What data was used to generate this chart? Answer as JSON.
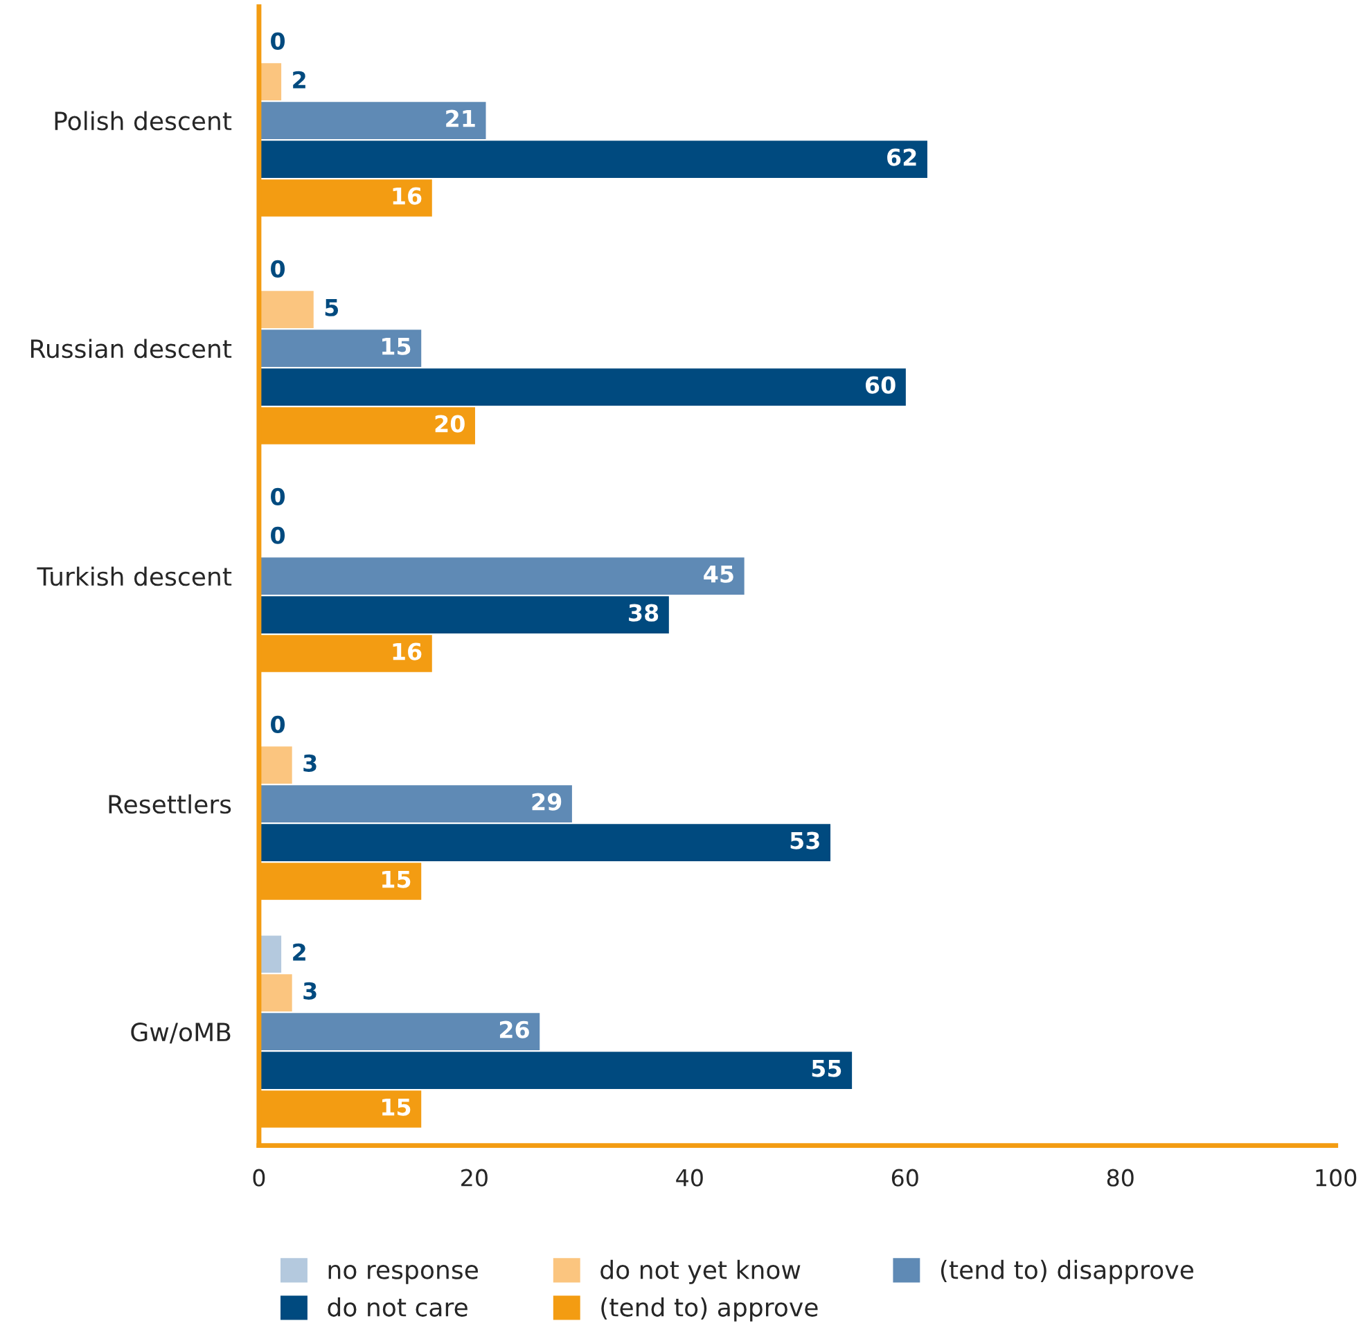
{
  "chart_data": {
    "type": "bar",
    "orientation": "horizontal",
    "data_labels": true,
    "legend": "bottom",
    "grid": false,
    "categories": [
      "Polish descent",
      "Russian descent",
      "Turkish descent",
      "Resettlers",
      "Gw/oMB"
    ],
    "series": [
      {
        "name": "no response",
        "color": "#b4c9de",
        "values": [
          0,
          0,
          0,
          0,
          2
        ]
      },
      {
        "name": "do not yet know",
        "color": "#fbc57f",
        "values": [
          2,
          5,
          0,
          3,
          3
        ]
      },
      {
        "name": "(tend to) disapprove",
        "color": "#5f8ab5",
        "values": [
          21,
          15,
          45,
          29,
          26
        ]
      },
      {
        "name": "do not care",
        "color": "#004a7f",
        "values": [
          62,
          60,
          38,
          53,
          55
        ]
      },
      {
        "name": "(tend to) approve",
        "color": "#f39c12",
        "values": [
          16,
          20,
          16,
          15,
          15
        ]
      }
    ],
    "xlim": [
      0,
      100
    ],
    "xticks": [
      0,
      20,
      40,
      60,
      80,
      100
    ]
  }
}
